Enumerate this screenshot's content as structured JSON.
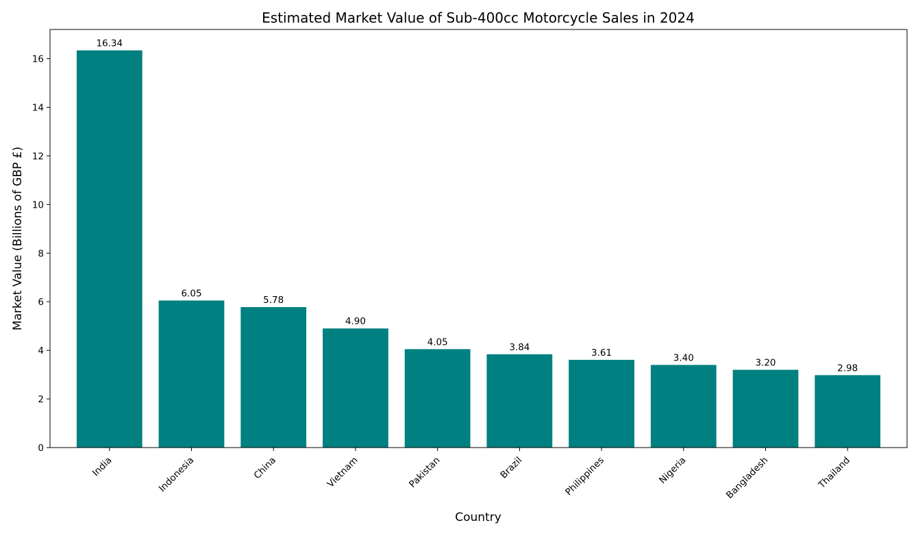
{
  "chart_data": {
    "type": "bar",
    "title": "Estimated Market Value of Sub-400cc Motorcycle Sales in 2024",
    "xlabel": "Country",
    "ylabel": "Market Value (Billions of GBP £)",
    "categories": [
      "India",
      "Indonesia",
      "China",
      "Vietnam",
      "Pakistan",
      "Brazil",
      "Philippines",
      "Nigeria",
      "Bangladesh",
      "Thailand"
    ],
    "values": [
      16.34,
      6.05,
      5.78,
      4.9,
      4.05,
      3.84,
      3.61,
      3.4,
      3.2,
      2.98
    ],
    "value_labels": [
      "16.34",
      "6.05",
      "5.78",
      "4.90",
      "4.05",
      "3.84",
      "3.61",
      "3.40",
      "3.20",
      "2.98"
    ],
    "yticks": [
      0,
      2,
      4,
      6,
      8,
      10,
      12,
      14,
      16
    ],
    "ylim": [
      0,
      17.2
    ],
    "bar_color": "#008080",
    "grid": false,
    "legend": false
  }
}
